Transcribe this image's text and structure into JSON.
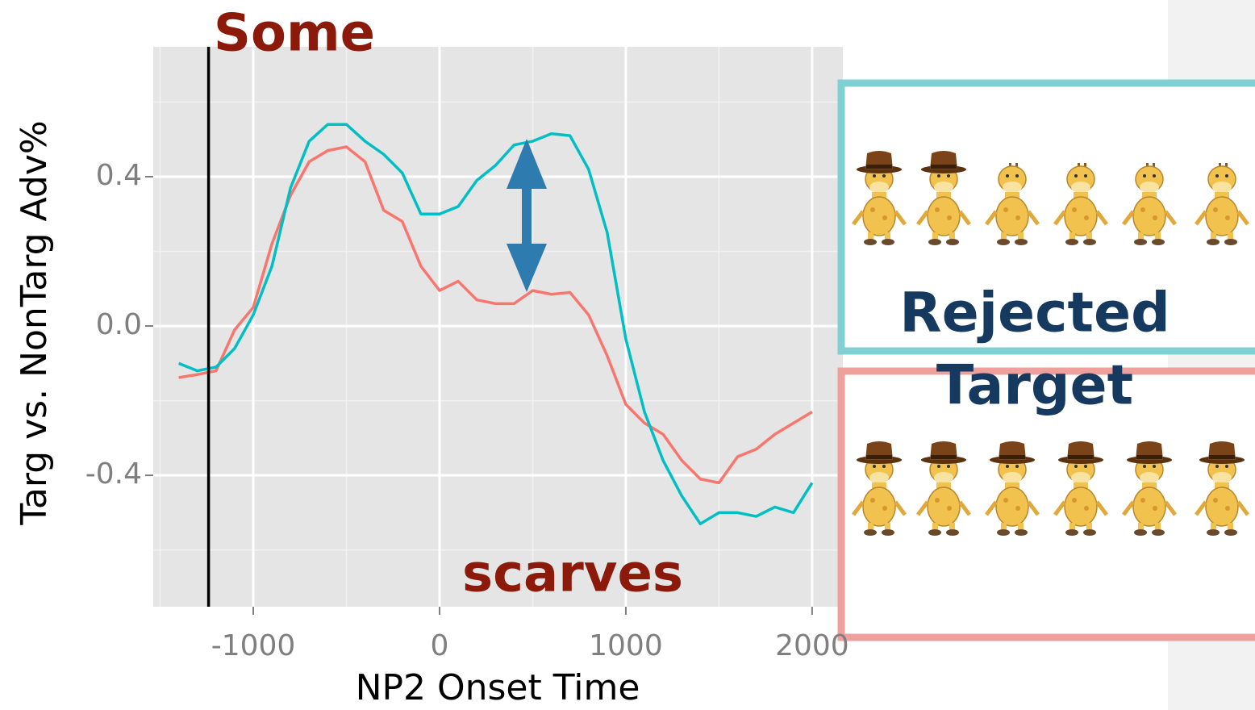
{
  "chart_data": {
    "type": "line",
    "title": "Some",
    "annotation": "scarves",
    "xlabel": "NP2 Onset Time",
    "ylabel": "Targ vs. NonTarg Adv%",
    "x": [
      -1400,
      -1300,
      -1200,
      -1100,
      -1000,
      -900,
      -800,
      -700,
      -600,
      -500,
      -400,
      -300,
      -200,
      -100,
      0,
      100,
      200,
      300,
      400,
      500,
      600,
      700,
      800,
      900,
      1000,
      1100,
      1200,
      1300,
      1400,
      1500,
      1600,
      1700,
      1800,
      1900,
      2000
    ],
    "series": [
      {
        "color": "#f8766d",
        "values": [
          -0.138,
          -0.13,
          -0.12,
          -0.01,
          0.05,
          0.22,
          0.35,
          0.44,
          0.47,
          0.48,
          0.44,
          0.31,
          0.28,
          0.16,
          0.095,
          0.12,
          0.07,
          0.06,
          0.06,
          0.095,
          0.085,
          0.09,
          0.03,
          -0.08,
          -0.21,
          -0.26,
          -0.29,
          -0.36,
          -0.41,
          -0.42,
          -0.35,
          -0.33,
          -0.29,
          -0.26,
          -0.23
        ]
      },
      {
        "color": "#00bfc4",
        "values": [
          -0.1,
          -0.12,
          -0.11,
          -0.06,
          0.03,
          0.16,
          0.37,
          0.495,
          0.54,
          0.54,
          0.495,
          0.46,
          0.41,
          0.3,
          0.3,
          0.32,
          0.39,
          0.43,
          0.485,
          0.495,
          0.515,
          0.51,
          0.42,
          0.25,
          -0.035,
          -0.23,
          -0.36,
          -0.455,
          -0.53,
          -0.5,
          -0.5,
          -0.51,
          -0.485,
          -0.5,
          -0.42
        ]
      }
    ],
    "vline": -1240,
    "xlim": [
      -1537,
      2165
    ],
    "ylim": [
      -0.752,
      0.748
    ],
    "xticks": [
      -1000,
      0,
      1000,
      2000
    ],
    "yticks": [
      -0.4,
      {
        "value": 0,
        "label": "0.0"
      },
      0.4
    ],
    "minor_xticks": [
      -1500,
      -500,
      500,
      1500
    ],
    "minor_yticks": [
      -0.6,
      -0.2,
      0.2,
      0.6
    ],
    "grid": true
  },
  "panels": {
    "top_label": "Rejected",
    "bottom_label": "Target"
  }
}
